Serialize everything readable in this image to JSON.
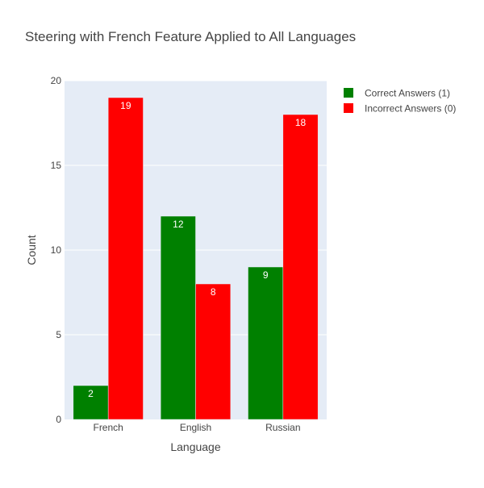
{
  "chart_data": {
    "type": "bar",
    "title": "Steering with French Feature Applied to All Languages",
    "xlabel": "Language",
    "ylabel": "Count",
    "categories": [
      "French",
      "English",
      "Russian"
    ],
    "ylim": [
      0,
      20
    ],
    "yticks": [
      0,
      5,
      10,
      15,
      20
    ],
    "grid": true,
    "legend_position": "top-right",
    "series": [
      {
        "name": "Correct Answers (1)",
        "values": [
          2,
          12,
          9
        ],
        "color": "#008000"
      },
      {
        "name": "Incorrect Answers (0)",
        "values": [
          19,
          8,
          18
        ],
        "color": "#ff0000"
      }
    ],
    "plot_background": "#e5ecf6",
    "text_color": "#444444"
  }
}
